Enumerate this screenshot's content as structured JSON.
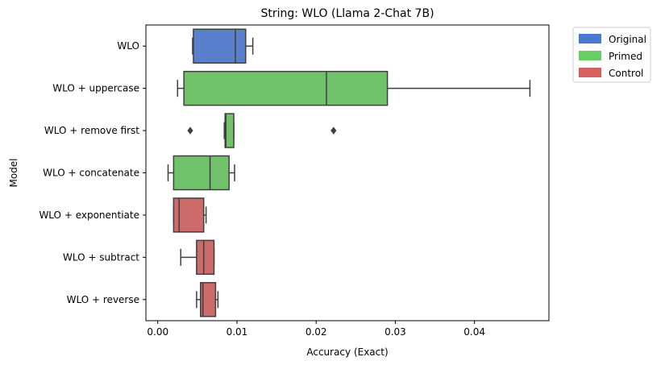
{
  "chart_data": {
    "type": "boxplot",
    "title": "String: WLO (Llama 2-Chat 7B)",
    "xlabel": "Accuracy (Exact)",
    "ylabel": "Model",
    "xlim": [
      -0.0015,
      0.0494
    ],
    "xticks": [
      0.0,
      0.01,
      0.02,
      0.03,
      0.04
    ],
    "xtick_labels": [
      "0.00",
      "0.01",
      "0.02",
      "0.03",
      "0.04"
    ],
    "legend_position": "outside-top-right",
    "legend": [
      {
        "label": "Original",
        "color": "#4878d0"
      },
      {
        "label": "Primed",
        "color": "#6acc64"
      },
      {
        "label": "Control",
        "color": "#d65f5f"
      }
    ],
    "categories": [
      {
        "label": "WLO",
        "group": "Original",
        "color": "#5a7fcc",
        "whisker_low": 0.0044,
        "q1": 0.0045,
        "median": 0.0098,
        "q3": 0.0111,
        "whisker_high": 0.012,
        "outliers": []
      },
      {
        "label": "WLO + uppercase",
        "group": "Primed",
        "color": "#72c26b",
        "whisker_low": 0.0025,
        "q1": 0.0033,
        "median": 0.0213,
        "q3": 0.029,
        "whisker_high": 0.047,
        "outliers": []
      },
      {
        "label": "WLO + remove first",
        "group": "Primed",
        "color": "#72c26b",
        "whisker_low": 0.0084,
        "q1": 0.0085,
        "median": 0.0086,
        "q3": 0.0096,
        "whisker_high": 0.0096,
        "outliers": [
          0.0041,
          0.0222
        ]
      },
      {
        "label": "WLO + concatenate",
        "group": "Primed",
        "color": "#72c26b",
        "whisker_low": 0.0013,
        "q1": 0.002,
        "median": 0.0066,
        "q3": 0.009,
        "whisker_high": 0.0097,
        "outliers": []
      },
      {
        "label": "WLO + exponentiate",
        "group": "Control",
        "color": "#cd6a6a",
        "whisker_low": 0.002,
        "q1": 0.002,
        "median": 0.0027,
        "q3": 0.0058,
        "whisker_high": 0.0061,
        "outliers": []
      },
      {
        "label": "WLO + subtract",
        "group": "Control",
        "color": "#cd6a6a",
        "whisker_low": 0.0029,
        "q1": 0.0049,
        "median": 0.0058,
        "q3": 0.0071,
        "whisker_high": 0.0071,
        "outliers": []
      },
      {
        "label": "WLO + reverse",
        "group": "Control",
        "color": "#cd6a6a",
        "whisker_low": 0.0049,
        "q1": 0.0054,
        "median": 0.0057,
        "q3": 0.0073,
        "whisker_high": 0.0076,
        "outliers": []
      }
    ]
  }
}
